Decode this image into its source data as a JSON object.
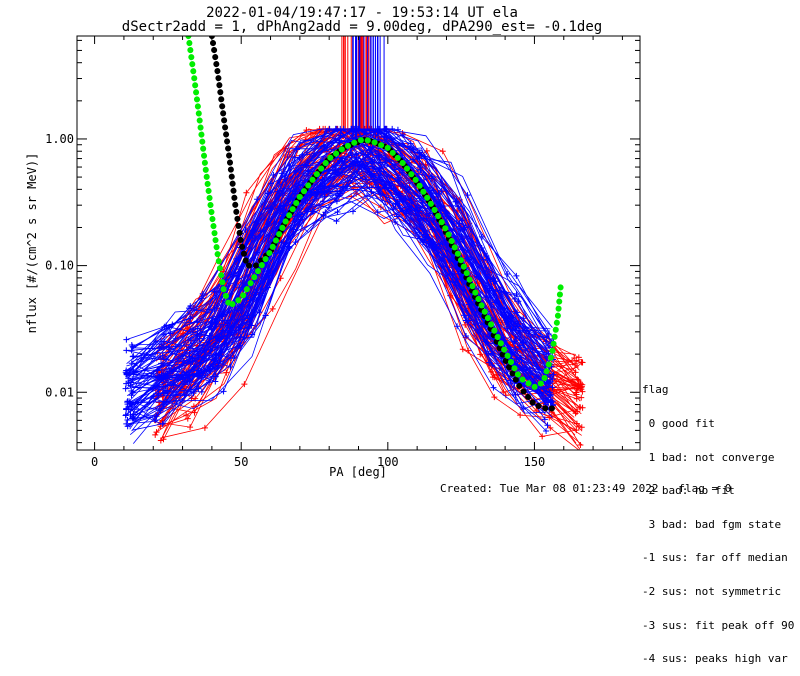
{
  "chart_data": {
    "type": "scatter",
    "title": "2022-01-04/19:47:17 - 19:53:14 UT ela",
    "subtitle": "dSectr2add = 1, dPhAng2add = 9.00deg, dPA290_est=  -0.1deg",
    "xlabel": "PA [deg]",
    "ylabel": "nflux [#/(cm^2 s sr MeV)]",
    "xlim": [
      -6,
      186
    ],
    "ylim": [
      0.0035,
      6.5
    ],
    "yscale": "log",
    "x_ticks": [
      0,
      50,
      100,
      150
    ],
    "x_tick_labels": [
      "0",
      "50",
      "100",
      "150"
    ],
    "y_ticks": [
      0.01,
      0.1,
      1.0
    ],
    "y_tick_labels": [
      "0.01",
      "0.10",
      "1.00"
    ],
    "series": [
      {
        "color": "#ff0000",
        "description": "red spectra, many traces",
        "traces": 70,
        "peak": [
          88,
          1.05
        ],
        "left": [
          [
            22,
            0.008
          ],
          [
            45,
            0.03
          ],
          [
            65,
            0.3
          ],
          [
            88,
            1.0
          ]
        ],
        "right": [
          [
            88,
            1.0
          ],
          [
            115,
            0.3
          ],
          [
            140,
            0.02
          ],
          [
            165,
            0.008
          ]
        ]
      },
      {
        "color": "#0000ff",
        "description": "blue spectra, many traces",
        "traces": 90,
        "peak": [
          92,
          0.95
        ],
        "left": [
          [
            12,
            0.01
          ],
          [
            45,
            0.03
          ],
          [
            65,
            0.35
          ],
          [
            92,
            0.95
          ]
        ],
        "right": [
          [
            92,
            0.95
          ],
          [
            115,
            0.3
          ],
          [
            140,
            0.03
          ],
          [
            155,
            0.012
          ]
        ]
      },
      {
        "color": "#000000",
        "description": "black dotted fit",
        "points": [
          [
            40,
            6.5
          ],
          [
            42,
            3.3
          ],
          [
            44,
            1.5
          ],
          [
            46,
            0.7
          ],
          [
            48,
            0.3
          ],
          [
            50,
            0.15
          ],
          [
            52,
            0.1
          ],
          [
            55,
            0.1
          ],
          [
            60,
            0.13
          ],
          [
            65,
            0.22
          ],
          [
            70,
            0.35
          ],
          [
            75,
            0.5
          ],
          [
            80,
            0.7
          ],
          [
            85,
            0.85
          ],
          [
            90,
            0.95
          ],
          [
            92,
            0.98
          ],
          [
            95,
            0.95
          ],
          [
            100,
            0.85
          ],
          [
            105,
            0.65
          ],
          [
            110,
            0.45
          ],
          [
            115,
            0.3
          ],
          [
            120,
            0.18
          ],
          [
            125,
            0.1
          ],
          [
            130,
            0.055
          ],
          [
            135,
            0.032
          ],
          [
            140,
            0.018
          ],
          [
            145,
            0.011
          ],
          [
            150,
            0.008
          ],
          [
            155,
            0.0073
          ],
          [
            158,
            0.0078
          ]
        ]
      },
      {
        "color": "#00ee00",
        "description": "green dotted fit",
        "points": [
          [
            32,
            6.5
          ],
          [
            34,
            3.0
          ],
          [
            36,
            1.3
          ],
          [
            38,
            0.55
          ],
          [
            40,
            0.25
          ],
          [
            42,
            0.12
          ],
          [
            44,
            0.065
          ],
          [
            46,
            0.048
          ],
          [
            50,
            0.055
          ],
          [
            55,
            0.085
          ],
          [
            60,
            0.13
          ],
          [
            65,
            0.22
          ],
          [
            70,
            0.35
          ],
          [
            75,
            0.5
          ],
          [
            80,
            0.7
          ],
          [
            85,
            0.85
          ],
          [
            90,
            0.97
          ],
          [
            92,
            0.99
          ],
          [
            95,
            0.95
          ],
          [
            100,
            0.85
          ],
          [
            105,
            0.65
          ],
          [
            110,
            0.46
          ],
          [
            115,
            0.3
          ],
          [
            120,
            0.19
          ],
          [
            125,
            0.11
          ],
          [
            130,
            0.06
          ],
          [
            135,
            0.035
          ],
          [
            140,
            0.021
          ],
          [
            145,
            0.013
          ],
          [
            150,
            0.011
          ],
          [
            153,
            0.012
          ],
          [
            156,
            0.02
          ],
          [
            158,
            0.04
          ],
          [
            159,
            0.07
          ]
        ]
      }
    ]
  },
  "legend": {
    "title": "flag",
    "entries": [
      " 0 good fit",
      " 1 bad: not converge",
      " 2 bad: no fit",
      " 3 bad: bad fgm state",
      "-1 sus: far off median",
      "-2 sus: not symmetric",
      "-3 sus: fit peak off 90",
      "-4 sus: peaks high var"
    ]
  },
  "footer": "Created: Tue Mar 08 01:23:49 2022   flag = 0"
}
